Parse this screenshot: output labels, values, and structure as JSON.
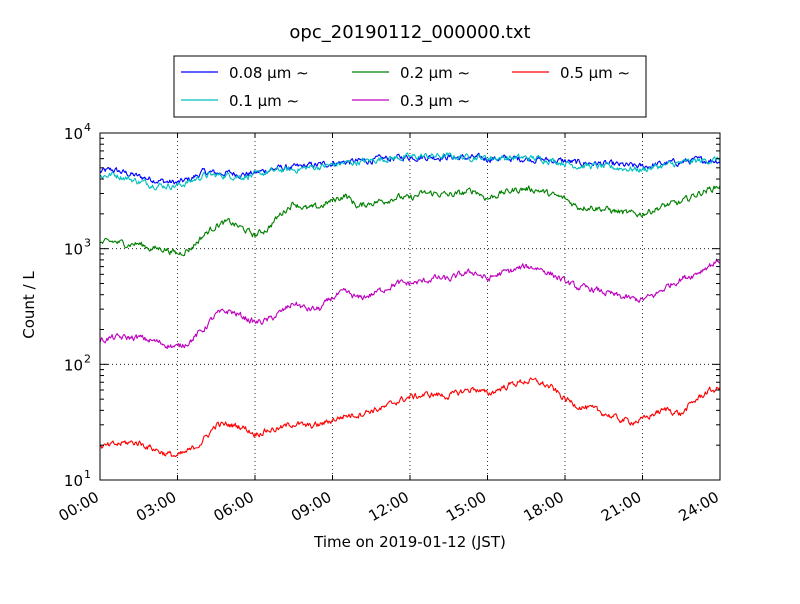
{
  "chart_data": {
    "type": "line",
    "title": "opc_20190112_000000.txt",
    "xlabel": "Time on 2019-01-12 (JST)",
    "ylabel": "Count / L",
    "yscale": "log",
    "xlim": [
      "00:00",
      "24:00"
    ],
    "ylim": [
      10,
      10000
    ],
    "grid": true,
    "legend_placement": "top-center",
    "x_ticks": [
      "00:00",
      "03:00",
      "06:00",
      "09:00",
      "12:00",
      "15:00",
      "18:00",
      "21:00",
      "24:00"
    ],
    "y_ticks": [
      {
        "base": "10",
        "exp": "1",
        "value": 10
      },
      {
        "base": "10",
        "exp": "2",
        "value": 100
      },
      {
        "base": "10",
        "exp": "3",
        "value": 1000
      },
      {
        "base": "10",
        "exp": "4",
        "value": 10000
      }
    ],
    "x": [
      "00:00",
      "00:30",
      "01:00",
      "01:30",
      "02:00",
      "02:30",
      "03:00",
      "03:30",
      "04:00",
      "04:30",
      "05:00",
      "05:30",
      "06:00",
      "06:30",
      "07:00",
      "07:30",
      "08:00",
      "08:30",
      "09:00",
      "09:30",
      "10:00",
      "10:30",
      "11:00",
      "11:30",
      "12:00",
      "12:30",
      "13:00",
      "13:30",
      "14:00",
      "14:30",
      "15:00",
      "15:30",
      "16:00",
      "16:30",
      "17:00",
      "17:30",
      "18:00",
      "18:30",
      "19:00",
      "19:30",
      "20:00",
      "20:30",
      "21:00",
      "21:30",
      "22:00",
      "22:30",
      "23:00",
      "23:30",
      "24:00"
    ],
    "series": [
      {
        "name": "0.08 μm ∼",
        "color": "#0000ff",
        "values": [
          4600,
          4800,
          4500,
          4200,
          4000,
          3800,
          3700,
          4000,
          4600,
          4500,
          4500,
          4400,
          4500,
          4800,
          5000,
          5000,
          5200,
          5300,
          5500,
          5600,
          5700,
          5800,
          6000,
          6100,
          6200,
          6200,
          6200,
          6200,
          6100,
          6100,
          6000,
          6000,
          6000,
          6000,
          5900,
          5800,
          5700,
          5500,
          5500,
          5400,
          5300,
          5200,
          5100,
          5300,
          5500,
          5600,
          5800,
          5800,
          5800
        ]
      },
      {
        "name": "0.1 μm ∼",
        "color": "#00bfbf",
        "values": [
          4200,
          4400,
          4100,
          3800,
          3600,
          3500,
          3500,
          3800,
          4300,
          4300,
          4300,
          4200,
          4300,
          4600,
          4800,
          4800,
          5000,
          5100,
          5300,
          5500,
          5600,
          5800,
          6000,
          6100,
          6200,
          6300,
          6300,
          6300,
          6200,
          6200,
          6100,
          6100,
          6100,
          6100,
          6000,
          5800,
          5500,
          5200,
          5200,
          5100,
          5000,
          4900,
          4800,
          5100,
          5300,
          5500,
          5700,
          5800,
          5900
        ]
      },
      {
        "name": "0.2 μm ∼",
        "color": "#008000",
        "values": [
          1100,
          1150,
          1100,
          1100,
          1000,
          1000,
          900,
          1000,
          1300,
          1600,
          1700,
          1500,
          1300,
          1500,
          2000,
          2500,
          2200,
          2300,
          2600,
          2900,
          2300,
          2500,
          2600,
          2800,
          2700,
          3000,
          3000,
          2900,
          3000,
          3200,
          2700,
          3000,
          3200,
          3300,
          3200,
          2900,
          2700,
          2300,
          2300,
          2200,
          2100,
          2000,
          2000,
          2200,
          2400,
          2500,
          2900,
          3200,
          3500
        ]
      },
      {
        "name": "0.3 μm ∼",
        "color": "#bf00bf",
        "values": [
          160,
          170,
          170,
          170,
          160,
          150,
          140,
          160,
          200,
          270,
          290,
          260,
          230,
          240,
          280,
          340,
          300,
          300,
          380,
          420,
          370,
          400,
          450,
          500,
          500,
          520,
          560,
          540,
          600,
          630,
          540,
          610,
          650,
          700,
          680,
          600,
          520,
          460,
          450,
          420,
          390,
          370,
          360,
          400,
          480,
          550,
          600,
          700,
          800
        ]
      },
      {
        "name": "0.5 μm ∼",
        "color": "#ff0000",
        "values": [
          19,
          20,
          21,
          21,
          19,
          17,
          16,
          18,
          22,
          30,
          30,
          29,
          25,
          27,
          28,
          31,
          29,
          30,
          33,
          36,
          37,
          40,
          42,
          48,
          52,
          54,
          55,
          53,
          58,
          62,
          55,
          62,
          68,
          72,
          70,
          62,
          50,
          44,
          41,
          38,
          34,
          32,
          33,
          38,
          41,
          37,
          48,
          58,
          62
        ]
      }
    ]
  }
}
